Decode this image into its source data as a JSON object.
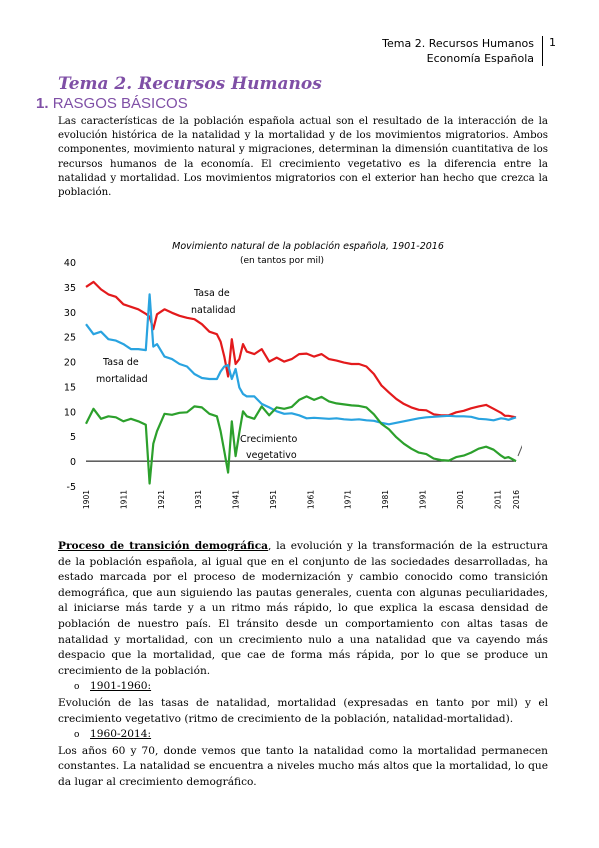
{
  "header": {
    "line1": "Tema 2. Recursos Humanos",
    "line2": "Economía Española",
    "page_number": "1"
  },
  "doc": {
    "title": "Tema 2. Recursos Humanos",
    "section_number": "1.",
    "section_title": "RASGOS BÁSICOS",
    "intro": "Las características de la población española actual son el resultado de la interacción de la evolución histórica de la natalidad y la mortalidad y de los movimientos migratorios. Ambos componentes, movimiento natural y migraciones, determinan la dimensión cuantitativa de los recursos humanos de la economía. El crecimiento vegetativo es la diferencia entre la natalidad y mortalidad. Los movimientos migratorios con el exterior han hecho que crezca la población.",
    "transition_heading": "Proceso de transición demográfica",
    "transition_text": ", la evolución y la transformación de la estructura de la población española, al igual que en el conjunto de las sociedades desarrolladas, ha estado marcada por el proceso de modernización y cambio conocido como transición demográfica, que aun siguiendo las pautas generales, cuenta con algunas peculiaridades, al iniciarse más tarde y a un ritmo más rápido, lo que explica la escasa densidad de población de nuestro país. El tránsito desde un comportamiento con altas tasas de natalidad y mortalidad, con un crecimiento nulo a una natalidad que va cayendo más despacio que la mortalidad, que cae de forma más rápida, por lo que se produce un crecimiento de la población.",
    "bullet_marker": "o",
    "period1_label": "1901-1960:",
    "period1_text": "Evolución de las tasas de natalidad, mortalidad (expresadas en tanto por mil) y el crecimiento vegetativo (ritmo de crecimiento de la población, natalidad-mortalidad).",
    "period2_label": "1960-2014:",
    "period2_text": "Los años 60 y 70, donde vemos que tanto la natalidad como la mortalidad permanecen constantes. La natalidad se encuentra a niveles mucho más altos que la mortalidad, lo que da lugar al crecimiento demográfico."
  },
  "chart_data": {
    "type": "line",
    "title": "Movimiento natural de la población española, 1901-2016",
    "subtitle": "(en tantos por mil)",
    "ylim": [
      -5,
      40
    ],
    "yticks": [
      "40",
      "35",
      "30",
      "25",
      "20",
      "15",
      "10",
      "5",
      "0",
      "-5"
    ],
    "xlim": [
      1901,
      2016
    ],
    "xticks": [
      "1901",
      "1911",
      "1921",
      "1931",
      "1941",
      "1951",
      "1961",
      "1971",
      "1981",
      "1991",
      "2001",
      "2011",
      "2016"
    ],
    "grid": false,
    "colors": {
      "natalidad": "#e31a1c",
      "mortalidad": "#29a3e0",
      "crecimiento": "#2ca02c",
      "axis": "#000000"
    },
    "annotations": {
      "natalidad": [
        "Tasa de",
        "natalidad"
      ],
      "mortalidad": [
        "Tasa de",
        "mortalidad"
      ],
      "crecimiento": [
        "Crecimiento",
        "vegetativo"
      ]
    },
    "series": [
      {
        "name": "Tasa de natalidad",
        "x": [
          1901,
          1903,
          1905,
          1907,
          1909,
          1911,
          1913,
          1915,
          1917,
          1918,
          1919,
          1920,
          1922,
          1924,
          1926,
          1928,
          1930,
          1932,
          1934,
          1936,
          1937,
          1938,
          1939,
          1940,
          1941,
          1942,
          1943,
          1944,
          1946,
          1948,
          1950,
          1952,
          1954,
          1956,
          1958,
          1960,
          1962,
          1964,
          1966,
          1968,
          1970,
          1972,
          1974,
          1976,
          1978,
          1980,
          1982,
          1984,
          1986,
          1988,
          1990,
          1992,
          1994,
          1996,
          1998,
          2000,
          2002,
          2004,
          2006,
          2008,
          2010,
          2012,
          2013,
          2014,
          2016
        ],
        "values": [
          35.0,
          36.0,
          34.5,
          33.5,
          33.0,
          31.5,
          31.0,
          30.5,
          29.6,
          29.0,
          26.5,
          29.5,
          30.5,
          29.8,
          29.2,
          28.8,
          28.5,
          27.5,
          26.0,
          25.5,
          24.0,
          21.0,
          17.0,
          24.5,
          19.5,
          20.5,
          23.5,
          22.0,
          21.5,
          22.5,
          20.0,
          20.8,
          20.0,
          20.5,
          21.5,
          21.6,
          21.0,
          21.5,
          20.5,
          20.2,
          19.8,
          19.5,
          19.5,
          19.0,
          17.5,
          15.2,
          13.8,
          12.5,
          11.5,
          10.8,
          10.3,
          10.2,
          9.4,
          9.2,
          9.2,
          9.8,
          10.1,
          10.6,
          11.0,
          11.3,
          10.5,
          9.7,
          9.1,
          9.1,
          8.8
        ]
      },
      {
        "name": "Tasa de mortalidad",
        "x": [
          1901,
          1903,
          1905,
          1907,
          1909,
          1911,
          1913,
          1915,
          1917,
          1918,
          1919,
          1920,
          1922,
          1924,
          1926,
          1928,
          1930,
          1932,
          1934,
          1936,
          1937,
          1938,
          1939,
          1940,
          1941,
          1942,
          1943,
          1944,
          1946,
          1948,
          1950,
          1952,
          1954,
          1956,
          1958,
          1960,
          1962,
          1964,
          1966,
          1968,
          1970,
          1972,
          1974,
          1976,
          1978,
          1980,
          1982,
          1984,
          1986,
          1988,
          1990,
          1992,
          1994,
          1996,
          1998,
          2000,
          2002,
          2004,
          2006,
          2008,
          2010,
          2012,
          2013,
          2014,
          2016
        ],
        "values": [
          27.5,
          25.5,
          26.0,
          24.5,
          24.2,
          23.5,
          22.5,
          22.5,
          22.3,
          33.5,
          23.0,
          23.5,
          21.0,
          20.5,
          19.5,
          19.0,
          17.5,
          16.7,
          16.5,
          16.5,
          18.0,
          19.0,
          19.3,
          16.5,
          18.5,
          14.8,
          13.5,
          13.0,
          13.0,
          11.5,
          10.8,
          10.0,
          9.5,
          9.6,
          9.2,
          8.6,
          8.7,
          8.6,
          8.5,
          8.6,
          8.4,
          8.3,
          8.4,
          8.2,
          8.1,
          7.7,
          7.4,
          7.7,
          8.0,
          8.3,
          8.6,
          8.8,
          8.9,
          9.0,
          9.1,
          9.0,
          9.0,
          8.9,
          8.5,
          8.4,
          8.2,
          8.6,
          8.5,
          8.3,
          8.8
        ]
      },
      {
        "name": "Crecimiento vegetativo",
        "x": [
          1901,
          1903,
          1905,
          1907,
          1909,
          1911,
          1913,
          1915,
          1917,
          1918,
          1919,
          1920,
          1922,
          1924,
          1926,
          1928,
          1930,
          1932,
          1934,
          1936,
          1937,
          1938,
          1939,
          1940,
          1941,
          1942,
          1943,
          1944,
          1946,
          1948,
          1950,
          1952,
          1954,
          1956,
          1958,
          1960,
          1962,
          1964,
          1966,
          1968,
          1970,
          1972,
          1974,
          1976,
          1978,
          1980,
          1982,
          1984,
          1986,
          1988,
          1990,
          1992,
          1994,
          1996,
          1998,
          2000,
          2002,
          2004,
          2006,
          2008,
          2010,
          2012,
          2013,
          2014,
          2016
        ],
        "values": [
          7.5,
          10.5,
          8.5,
          9.0,
          8.8,
          8.0,
          8.5,
          8.0,
          7.3,
          -4.5,
          3.5,
          6.0,
          9.5,
          9.3,
          9.7,
          9.8,
          11.0,
          10.8,
          9.5,
          9.0,
          6.0,
          2.0,
          -2.3,
          8.0,
          1.0,
          5.7,
          10.0,
          9.0,
          8.5,
          11.0,
          9.2,
          10.8,
          10.5,
          10.9,
          12.3,
          13.0,
          12.3,
          12.9,
          12.0,
          11.6,
          11.4,
          11.2,
          11.1,
          10.8,
          9.4,
          7.5,
          6.4,
          4.8,
          3.5,
          2.5,
          1.7,
          1.4,
          0.5,
          0.2,
          0.1,
          0.8,
          1.1,
          1.7,
          2.5,
          2.9,
          2.3,
          1.1,
          0.6,
          0.8,
          0.0
        ]
      }
    ]
  }
}
